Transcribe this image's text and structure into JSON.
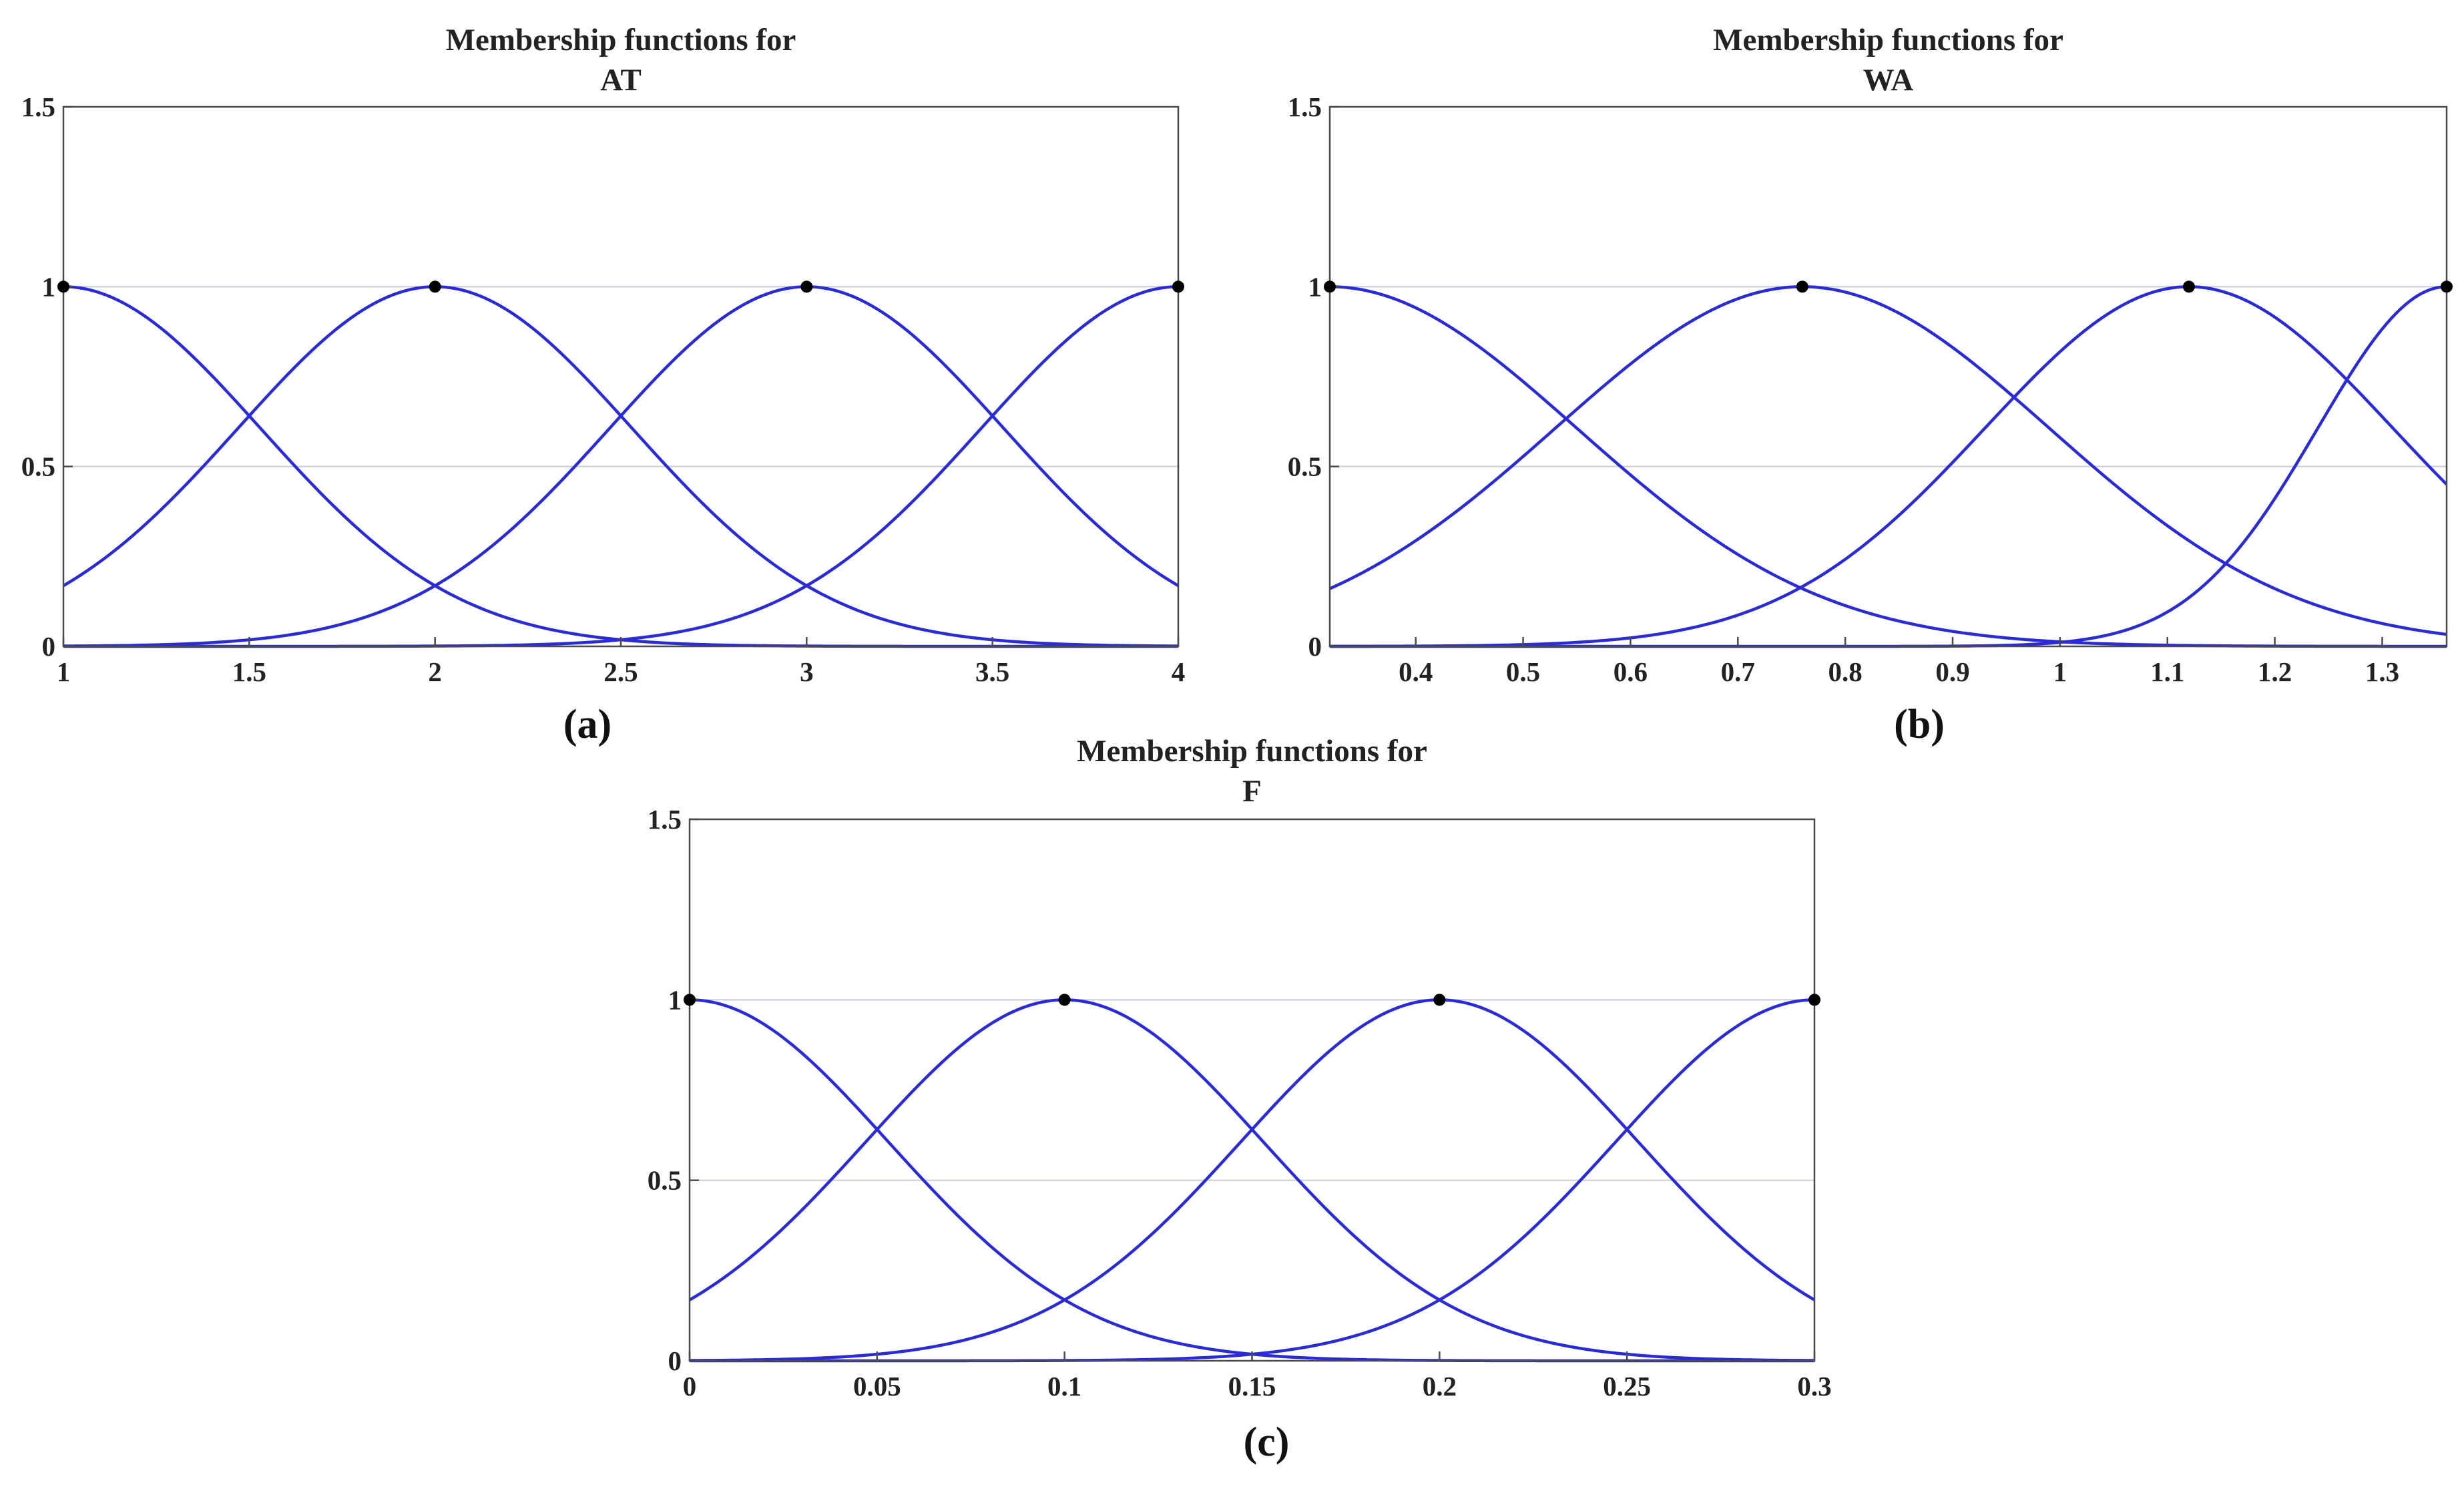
{
  "chart_data": [
    {
      "type": "line",
      "title": [
        "Membership functions for",
        "AT"
      ],
      "caption": "(a)",
      "xlim": [
        1,
        4
      ],
      "ylim": [
        0,
        1.5
      ],
      "xticks": [
        1,
        1.5,
        2,
        2.5,
        3,
        3.5,
        4
      ],
      "yticks": [
        0,
        0.5,
        1,
        1.5
      ],
      "grid": "horizontal",
      "line_color": "#2b2bd6",
      "series": [
        {
          "shape": "gaussian",
          "center": 1,
          "sigma": 0.53
        },
        {
          "shape": "gaussian",
          "center": 2,
          "sigma": 0.53
        },
        {
          "shape": "gaussian",
          "center": 3,
          "sigma": 0.53
        },
        {
          "shape": "gaussian",
          "center": 4,
          "sigma": 0.53
        }
      ],
      "markers": [
        [
          1,
          1
        ],
        [
          2,
          1
        ],
        [
          3,
          1
        ],
        [
          4,
          1
        ]
      ]
    },
    {
      "type": "line",
      "title": [
        "Membership functions for",
        "WA"
      ],
      "caption": "(b)",
      "xlim": [
        0.32,
        1.36
      ],
      "ylim": [
        0,
        1.5
      ],
      "xticks": [
        0.4,
        0.5,
        0.6,
        0.7,
        0.8,
        0.9,
        1,
        1.1,
        1.2,
        1.3
      ],
      "yticks": [
        0,
        0.5,
        1,
        1.5
      ],
      "grid": "horizontal",
      "line_color": "#2b2bd6",
      "series": [
        {
          "shape": "gaussian",
          "center": 0.32,
          "sigma": 0.23
        },
        {
          "shape": "gaussian",
          "center": 0.76,
          "sigma": 0.23
        },
        {
          "shape": "gaussian",
          "center": 1.12,
          "sigma": 0.19
        },
        {
          "shape": "gaussian",
          "center": 1.36,
          "sigma": 0.12
        }
      ],
      "markers": [
        [
          0.32,
          1
        ],
        [
          0.76,
          1
        ],
        [
          1.12,
          1
        ],
        [
          1.36,
          1
        ]
      ]
    },
    {
      "type": "line",
      "title": [
        "Membership functions for",
        "F"
      ],
      "caption": "(c)",
      "xlim": [
        0,
        0.3
      ],
      "ylim": [
        0,
        1.5
      ],
      "xticks": [
        0,
        0.05,
        0.1,
        0.15,
        0.2,
        0.25,
        0.3
      ],
      "yticks": [
        0,
        0.5,
        1,
        1.5
      ],
      "grid": "horizontal",
      "line_color": "#2b2bd6",
      "series": [
        {
          "shape": "gaussian",
          "center": 0,
          "sigma": 0.053
        },
        {
          "shape": "gaussian",
          "center": 0.1,
          "sigma": 0.053
        },
        {
          "shape": "gaussian",
          "center": 0.2,
          "sigma": 0.053
        },
        {
          "shape": "gaussian",
          "center": 0.3,
          "sigma": 0.053
        }
      ],
      "markers": [
        [
          0,
          1
        ],
        [
          0.1,
          1
        ],
        [
          0.2,
          1
        ],
        [
          0.3,
          1
        ]
      ]
    }
  ]
}
